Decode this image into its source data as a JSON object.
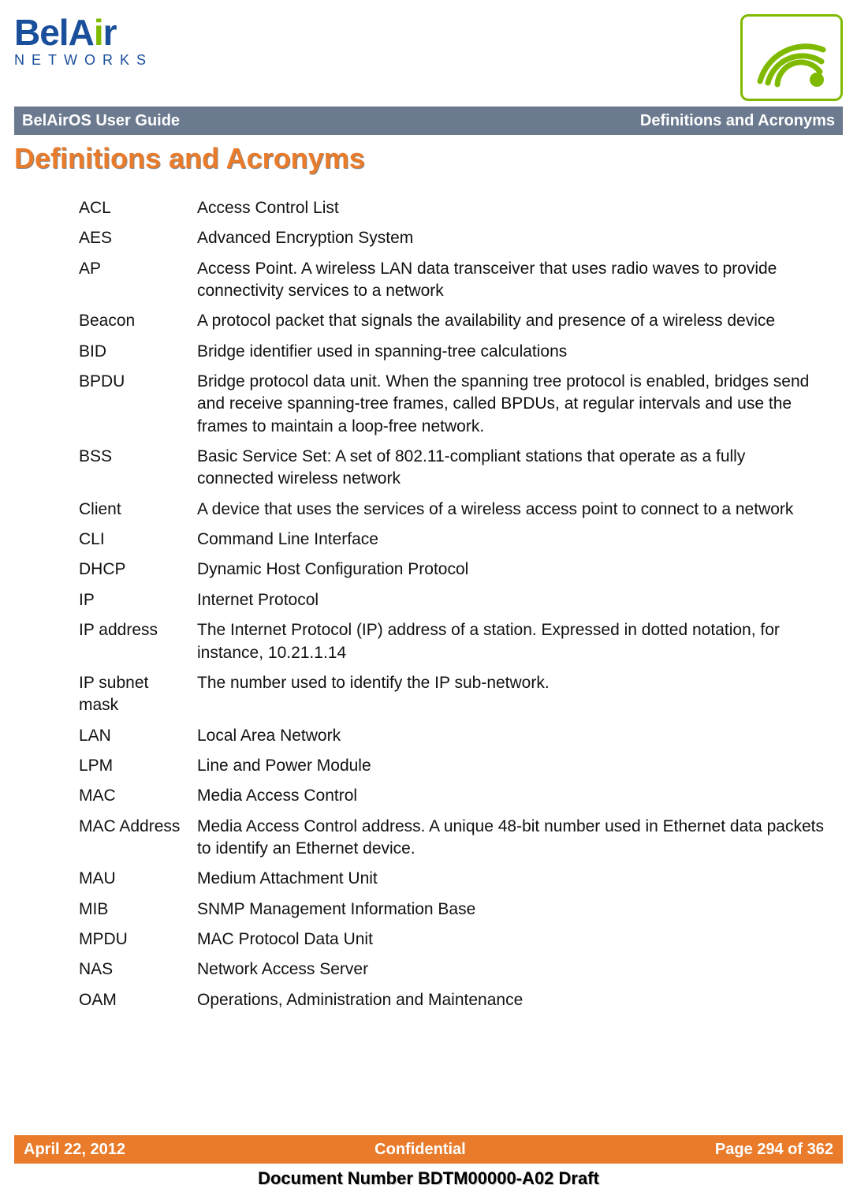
{
  "logo": {
    "main": "BelAir",
    "sub": "NETWORKS"
  },
  "colors": {
    "brand_blue": "#1a4f9c",
    "brand_green": "#7fba00",
    "strip_gray": "#6b7a8f",
    "accent_orange": "#e97b2a",
    "text": "#111111",
    "background": "#ffffff"
  },
  "title_strip": {
    "left": "BelAirOS User Guide",
    "right": "Definitions and Acronyms"
  },
  "page_title": "Definitions and Acronyms",
  "definitions": [
    {
      "term": "ACL",
      "desc": "Access Control List"
    },
    {
      "term": "AES",
      "desc": "Advanced Encryption System"
    },
    {
      "term": "AP",
      "desc": "Access Point. A wireless LAN data transceiver that uses radio waves to provide connectivity services to a network"
    },
    {
      "term": "Beacon",
      "desc": "A protocol packet that signals the availability and presence of a wireless device"
    },
    {
      "term": "BID",
      "desc": "Bridge identifier used in spanning-tree calculations"
    },
    {
      "term": "BPDU",
      "desc": "Bridge protocol data unit. When the spanning tree protocol is enabled, bridges send and receive spanning-tree frames, called BPDUs, at regular intervals and use the frames to maintain a loop-free network."
    },
    {
      "term": "BSS",
      "desc": "Basic Service Set: A set of 802.11-compliant stations that operate as a fully connected wireless network"
    },
    {
      "term": "Client",
      "desc": "A device that uses the services of a wireless access point to connect to a network"
    },
    {
      "term": "CLI",
      "desc": "Command Line Interface"
    },
    {
      "term": "DHCP",
      "desc": "Dynamic Host Configuration Protocol"
    },
    {
      "term": "IP",
      "desc": "Internet Protocol"
    },
    {
      "term": "IP address",
      "desc": "The Internet Protocol (IP) address of a station. Expressed in dotted notation, for instance, 10.21.1.14"
    },
    {
      "term": "IP subnet mask",
      "desc": "The number used to identify the IP sub-network."
    },
    {
      "term": "LAN",
      "desc": "Local Area Network"
    },
    {
      "term": "LPM",
      "desc": "Line and Power Module"
    },
    {
      "term": "MAC",
      "desc": "Media Access Control"
    },
    {
      "term": "MAC Address",
      "desc": "Media Access Control address. A unique 48-bit number used in Ethernet data packets to identify an Ethernet device."
    },
    {
      "term": "MAU",
      "desc": "Medium Attachment Unit"
    },
    {
      "term": "MIB",
      "desc": "SNMP Management Information Base"
    },
    {
      "term": "MPDU",
      "desc": "MAC Protocol Data Unit"
    },
    {
      "term": "NAS",
      "desc": "Network Access Server"
    },
    {
      "term": "OAM",
      "desc": "Operations, Administration and Maintenance"
    }
  ],
  "footer": {
    "left": "April 22, 2012",
    "center": "Confidential",
    "right": "Page 294 of 362"
  },
  "doc_number": "Document Number BDTM00000-A02 Draft"
}
